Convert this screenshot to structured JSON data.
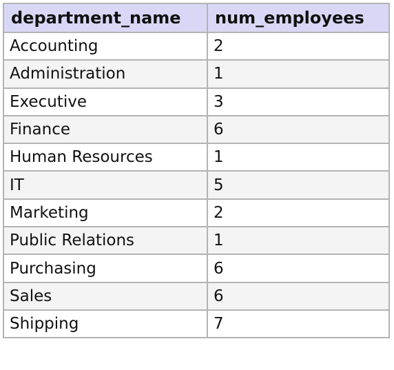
{
  "table": {
    "headers": [
      "department_name",
      "num_employees"
    ],
    "rows": [
      [
        "Accounting",
        "2"
      ],
      [
        "Administration",
        "1"
      ],
      [
        "Executive",
        "3"
      ],
      [
        "Finance",
        "6"
      ],
      [
        "Human Resources",
        "1"
      ],
      [
        "IT",
        "5"
      ],
      [
        "Marketing",
        "2"
      ],
      [
        "Public Relations",
        "1"
      ],
      [
        "Purchasing",
        "6"
      ],
      [
        "Sales",
        "6"
      ],
      [
        "Shipping",
        "7"
      ]
    ]
  }
}
